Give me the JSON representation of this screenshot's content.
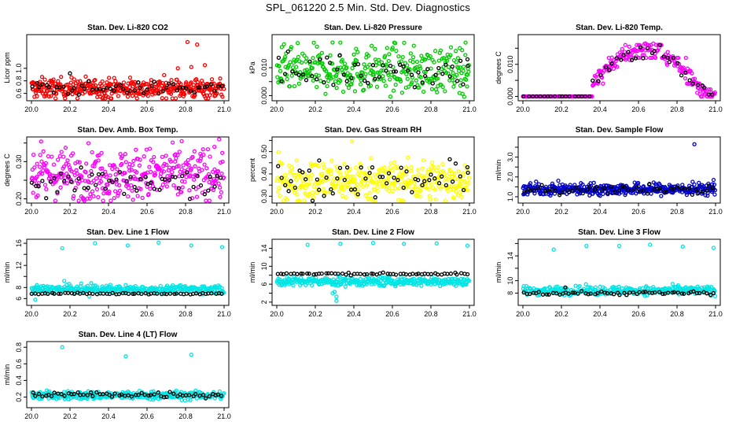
{
  "title": "SPL_061220  2.5 Min. Std. Dev. Diagnostics",
  "chart_data": [
    {
      "type": "scatter",
      "title": "Stan. Dev. Li-820 CO2",
      "ylabel": "Licor ppm",
      "xlim": [
        20.0,
        21.0
      ],
      "ylim": [
        0.52,
        1.5
      ],
      "xticks": [
        20.0,
        20.2,
        20.4,
        20.6,
        20.8,
        21.0
      ],
      "yticks": [
        0.6,
        0.8,
        1.0
      ],
      "ytick_labels": [
        "0.6",
        "0.8",
        "1.0"
      ],
      "color_primary": "#ff0000",
      "color_secondary": "#000000",
      "primary": {
        "center": 0.68,
        "spread": 0.08,
        "n": 420,
        "outliers": [
          [
            20.81,
            1.42
          ],
          [
            20.83,
            1.02
          ],
          [
            20.86,
            1.38
          ],
          [
            20.9,
            1.05
          ],
          [
            20.76,
            1.0
          ]
        ]
      },
      "secondary": {
        "center": 0.68,
        "spread": 0.05,
        "n": 55,
        "outliers": [
          [
            20.2,
            0.92
          ]
        ]
      }
    },
    {
      "type": "scatter",
      "title": "Stan. Dev. Li-820 Pressure",
      "ylabel": "kPa",
      "xlim": [
        20.0,
        21.0
      ],
      "ylim": [
        -0.001,
        0.021
      ],
      "xticks": [
        20.0,
        20.2,
        20.4,
        20.6,
        20.8,
        21.0
      ],
      "yticks": [
        0.0,
        0.005,
        0.01
      ],
      "ytick_labels": [
        "0.000",
        "",
        "0.010"
      ],
      "color_primary": "#00cc00",
      "color_secondary": "#000000",
      "primary": {
        "center": 0.009,
        "spread": 0.004,
        "n": 360,
        "outliers": [
          [
            20.33,
            0.019
          ],
          [
            20.61,
            0.019
          ],
          [
            20.98,
            0.019
          ],
          [
            20.95,
            0.017
          ]
        ]
      },
      "secondary": {
        "center": 0.009,
        "spread": 0.003,
        "n": 55,
        "outliers": [
          [
            20.99,
            0.013
          ]
        ]
      }
    },
    {
      "type": "scatter",
      "title": "Stan. Dev. Li-820 Temp.",
      "ylabel": "degrees C",
      "xlim": [
        20.0,
        21.0
      ],
      "ylim": [
        -0.0006,
        0.0185
      ],
      "xticks": [
        20.0,
        20.2,
        20.4,
        20.6,
        20.8,
        21.0
      ],
      "yticks": [
        0.0,
        0.005,
        0.01,
        0.015
      ],
      "ytick_labels": [
        "0.000",
        "",
        "0.010",
        ""
      ],
      "color_primary": "#ff00ff",
      "color_secondary": "#000000",
      "primary": {
        "center": 0.008,
        "spread": 0.004,
        "n": 330,
        "outliers": []
      },
      "secondary": {
        "center": 0.008,
        "spread": 0.004,
        "n": 50,
        "outliers": []
      }
    },
    {
      "type": "scatter",
      "title": "Stan. Dev. Amb. Box Temp.",
      "ylabel": "degrees C",
      "xlim": [
        20.0,
        21.0
      ],
      "ylim": [
        0.195,
        0.36
      ],
      "xticks": [
        20.0,
        20.2,
        20.4,
        20.6,
        20.8,
        21.0
      ],
      "yticks": [
        0.2,
        0.25,
        0.3,
        0.35
      ],
      "ytick_labels": [
        "0.20",
        "",
        "0.30",
        ""
      ],
      "color_primary": "#ff00ff",
      "color_secondary": "#000000",
      "primary": {
        "center": 0.265,
        "spread": 0.035,
        "n": 380,
        "outliers": [
          [
            20.78,
            0.355
          ],
          [
            20.95,
            0.34
          ]
        ]
      },
      "secondary": {
        "center": 0.24,
        "spread": 0.02,
        "n": 55,
        "outliers": []
      }
    },
    {
      "type": "scatter",
      "title": "Stan. Dev. Gas Stream RH",
      "ylabel": "percent",
      "xlim": [
        20.0,
        21.0
      ],
      "ylim": [
        0.28,
        0.555
      ],
      "xticks": [
        20.0,
        20.2,
        20.4,
        20.6,
        20.8,
        21.0
      ],
      "yticks": [
        0.3,
        0.35,
        0.4,
        0.45,
        0.5,
        0.55
      ],
      "ytick_labels": [
        "0.30",
        "",
        "0.40",
        "",
        "0.50",
        ""
      ],
      "color_primary": "#ffff00",
      "color_secondary": "#000000",
      "primary": {
        "center": 0.37,
        "spread": 0.045,
        "n": 380,
        "outliers": [
          [
            20.39,
            0.545
          ]
        ]
      },
      "secondary": {
        "center": 0.37,
        "spread": 0.035,
        "n": 55,
        "outliers": [
          [
            20.22,
            0.46
          ],
          [
            20.99,
            0.43
          ]
        ]
      }
    },
    {
      "type": "scatter",
      "title": "Stan. Dev. Sample Flow",
      "ylabel": "ml/min",
      "xlim": [
        20.0,
        21.0
      ],
      "ylim": [
        0.8,
        3.9
      ],
      "xticks": [
        20.0,
        20.2,
        20.4,
        20.6,
        20.8,
        21.0
      ],
      "yticks": [
        1.0,
        1.5,
        2.0,
        2.5,
        3.0,
        3.5
      ],
      "ytick_labels": [
        "1.0",
        "",
        "2.0",
        "",
        "3.0",
        ""
      ],
      "color_primary": "#0000cc",
      "color_secondary": "#000000",
      "primary": {
        "center": 1.38,
        "spread": 0.15,
        "n": 400,
        "outliers": [
          [
            20.89,
            3.65
          ],
          [
            20.99,
            1.85
          ]
        ]
      },
      "secondary": {
        "center": 1.35,
        "spread": 0.12,
        "n": 55,
        "outliers": []
      }
    },
    {
      "type": "scatter",
      "title": "Stan. Dev. Line 1 Flow",
      "ylabel": "ml/min",
      "xlim": [
        20.0,
        21.0
      ],
      "ylim": [
        5.2,
        16.3
      ],
      "xticks": [
        20.0,
        20.2,
        20.4,
        20.6,
        20.8,
        21.0
      ],
      "yticks": [
        6,
        8,
        10,
        12,
        14,
        16
      ],
      "ytick_labels": [
        "6",
        "8",
        "",
        "12",
        "",
        "16"
      ],
      "color_primary": "#00e5e5",
      "color_secondary": "#000000",
      "primary": {
        "center": 7.7,
        "spread": 0.35,
        "n": 330,
        "outliers": [
          [
            20.16,
            15.1
          ],
          [
            20.33,
            16.0
          ],
          [
            20.5,
            15.6
          ],
          [
            20.66,
            16.1
          ],
          [
            20.83,
            15.6
          ],
          [
            20.99,
            15.3
          ],
          [
            20.02,
            5.8
          ],
          [
            20.3,
            6.4
          ],
          [
            20.17,
            9.2
          ],
          [
            20.31,
            8.8
          ]
        ]
      },
      "secondary": {
        "center": 6.9,
        "spread": 0.08,
        "n": 60,
        "outliers": []
      }
    },
    {
      "type": "scatter",
      "title": "Stan. Dev. Line 2 Flow",
      "ylabel": "ml/min",
      "xlim": [
        20.0,
        21.0
      ],
      "ylim": [
        1.8,
        15.5
      ],
      "xticks": [
        20.0,
        20.2,
        20.4,
        20.6,
        20.8,
        21.0
      ],
      "yticks": [
        2,
        4,
        6,
        8,
        10,
        12,
        14
      ],
      "ytick_labels": [
        "2",
        "",
        "6",
        "",
        "10",
        "",
        "14"
      ],
      "color_primary": "#00e5e5",
      "color_secondary": "#000000",
      "primary": {
        "center": 6.6,
        "spread": 0.5,
        "n": 340,
        "outliers": [
          [
            20.16,
            14.8
          ],
          [
            20.33,
            15.0
          ],
          [
            20.5,
            15.2
          ],
          [
            20.66,
            15.0
          ],
          [
            20.83,
            15.1
          ],
          [
            20.99,
            14.6
          ],
          [
            20.29,
            4.0
          ],
          [
            20.31,
            3.2
          ],
          [
            20.31,
            2.3
          ],
          [
            20.3,
            4.3
          ]
        ]
      },
      "secondary": {
        "center": 8.3,
        "spread": 0.12,
        "n": 60,
        "outliers": []
      }
    },
    {
      "type": "scatter",
      "title": "Stan. Dev. Line 3 Flow",
      "ylabel": "ml/min",
      "xlim": [
        20.0,
        21.0
      ],
      "ylim": [
        6.4,
        16.3
      ],
      "xticks": [
        20.0,
        20.2,
        20.4,
        20.6,
        20.8,
        21.0
      ],
      "yticks": [
        8,
        10,
        12,
        14,
        16
      ],
      "ytick_labels": [
        "8",
        "10",
        "",
        "14",
        ""
      ],
      "color_primary": "#00e5e5",
      "color_secondary": "#000000",
      "primary": {
        "center": 8.4,
        "spread": 0.35,
        "n": 330,
        "outliers": [
          [
            20.16,
            15.0
          ],
          [
            20.33,
            15.6
          ],
          [
            20.5,
            15.6
          ],
          [
            20.66,
            15.8
          ],
          [
            20.83,
            15.5
          ],
          [
            20.99,
            15.3
          ]
        ]
      },
      "secondary": {
        "center": 8.0,
        "spread": 0.15,
        "n": 60,
        "outliers": [
          [
            20.22,
            8.9
          ]
        ]
      }
    },
    {
      "type": "scatter",
      "title": "Stan. Dev. Line 4 (LT) Flow",
      "ylabel": "ml/min",
      "xlim": [
        20.0,
        21.0
      ],
      "ylim": [
        0.1,
        0.84
      ],
      "xticks": [
        20.0,
        20.2,
        20.4,
        20.6,
        20.8,
        21.0
      ],
      "yticks": [
        0.2,
        0.4,
        0.6,
        0.8
      ],
      "ytick_labels": [
        "0.2",
        "0.4",
        "0.6",
        "0.8"
      ],
      "color_primary": "#00e5e5",
      "color_secondary": "#000000",
      "primary": {
        "center": 0.22,
        "spread": 0.025,
        "n": 330,
        "outliers": [
          [
            20.16,
            0.8
          ],
          [
            20.49,
            0.69
          ],
          [
            20.83,
            0.71
          ]
        ]
      },
      "secondary": {
        "center": 0.23,
        "spread": 0.02,
        "n": 60,
        "outliers": []
      }
    }
  ],
  "xtick_labels": [
    "20.0",
    "20.2",
    "20.4",
    "20.6",
    "20.8",
    "21.0"
  ]
}
